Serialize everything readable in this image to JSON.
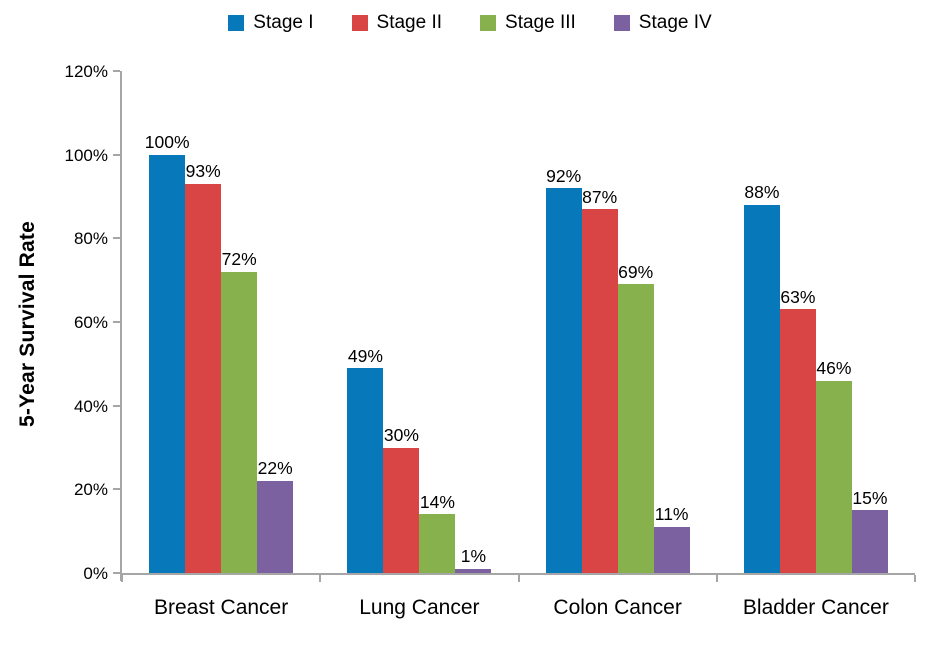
{
  "chart_data": {
    "type": "bar",
    "title": "",
    "xlabel": "",
    "ylabel": "5-Year Survival Rate",
    "ylim": [
      0,
      120
    ],
    "ytick_step": 20,
    "ytick_suffix": "%",
    "grid": false,
    "legend_position": "top",
    "data_label_suffix": "%",
    "categories": [
      "Breast Cancer",
      "Lung Cancer",
      "Colon Cancer",
      "Bladder Cancer"
    ],
    "series": [
      {
        "name": "Stage I",
        "color": "#0778b9",
        "values": [
          100,
          49,
          92,
          88
        ]
      },
      {
        "name": "Stage II",
        "color": "#d94444",
        "values": [
          93,
          30,
          87,
          63
        ]
      },
      {
        "name": "Stage III",
        "color": "#86b14c",
        "values": [
          72,
          14,
          69,
          46
        ]
      },
      {
        "name": "Stage IV",
        "color": "#7c61a0",
        "values": [
          22,
          1,
          11,
          15
        ]
      }
    ]
  },
  "colors": {
    "axis": "#a6a6a6",
    "text": "#000000",
    "background": "#ffffff"
  }
}
